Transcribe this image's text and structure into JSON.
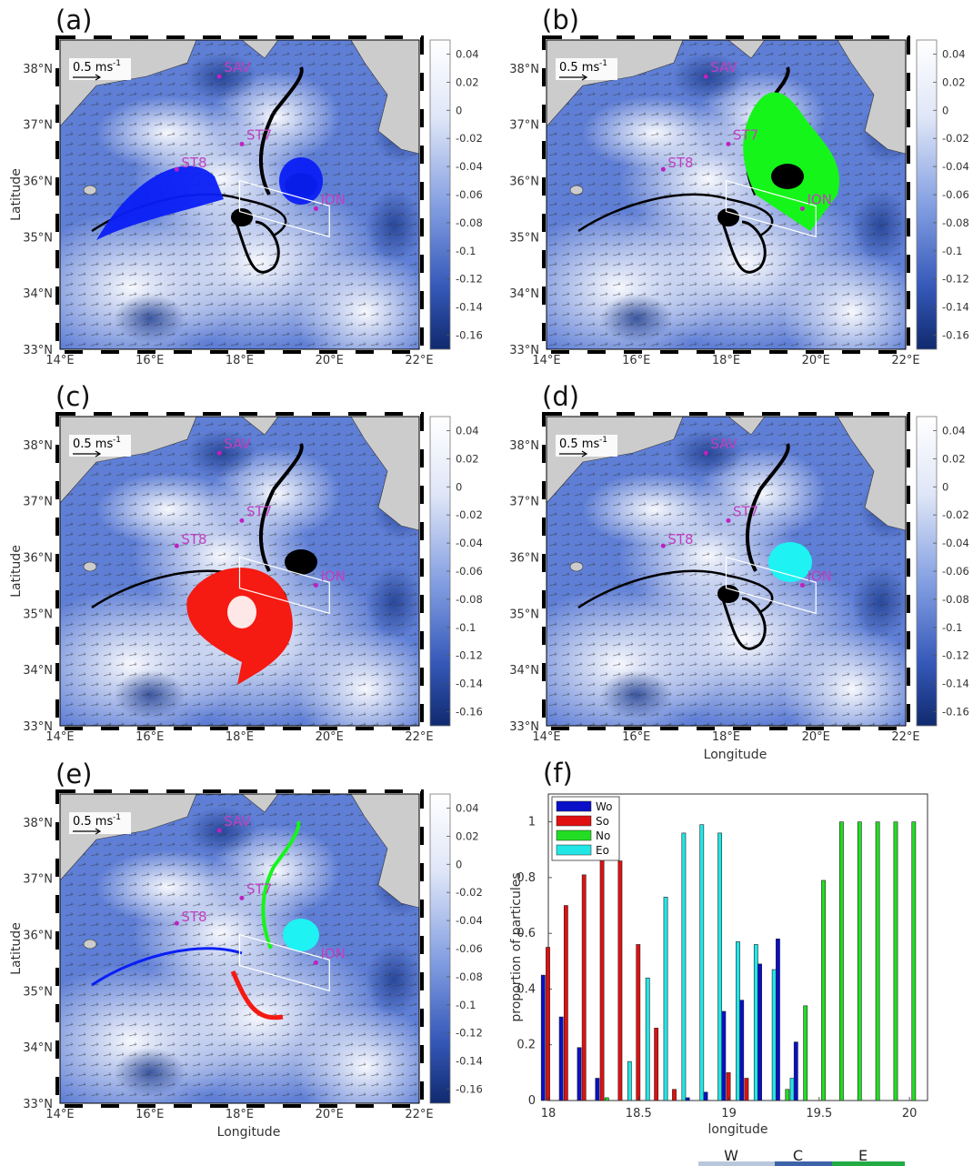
{
  "panels": [
    {
      "label": "(a)",
      "ylabel": "Latitude",
      "xlabel": "",
      "particle_color": "#0a1ff5",
      "scale_label": "0.5 ms",
      "scale_sup": "-1"
    },
    {
      "label": "(b)",
      "ylabel": "",
      "xlabel": "",
      "particle_color": "#16f51a",
      "scale_label": "0.5 ms",
      "scale_sup": "-1"
    },
    {
      "label": "(c)",
      "ylabel": "Latitude",
      "xlabel": "",
      "particle_color": "#f51a12",
      "scale_label": "0.5 ms",
      "scale_sup": "-1"
    },
    {
      "label": "(d)",
      "ylabel": "",
      "xlabel": "Longitude",
      "particle_color": "#1ef2f2",
      "scale_label": "0.5 ms",
      "scale_sup": "-1"
    },
    {
      "label": "(e)",
      "ylabel": "Latitude",
      "xlabel": "Longitude",
      "particle_color": "",
      "scale_label": "0.5 ms",
      "scale_sup": "-1"
    }
  ],
  "map_axes": {
    "lat_ticks": [
      "38°N",
      "37°N",
      "36°N",
      "35°N",
      "34°N",
      "33°N"
    ],
    "lon_ticks": [
      "14°E",
      "16°E",
      "18°E",
      "20°E",
      "22°E"
    ],
    "xlim": [
      14,
      22
    ],
    "ylim": [
      33,
      38.5
    ]
  },
  "stations": [
    {
      "name": "SAV",
      "lon": 17.55,
      "lat": 37.85
    },
    {
      "name": "ST7",
      "lon": 18.05,
      "lat": 36.65
    },
    {
      "name": "ST8",
      "lon": 16.6,
      "lat": 36.2
    },
    {
      "name": "ION",
      "lon": 19.7,
      "lat": 35.5
    }
  ],
  "colorbar": {
    "ticks": [
      "0.04",
      "0.02",
      "0",
      "-0.02",
      "-0.04",
      "-0.06",
      "-0.08",
      "-0.1",
      "-0.12",
      "-0.14",
      "-0.16"
    ],
    "range": [
      -0.17,
      0.05
    ],
    "low_color": "#102a6e",
    "mid_color": "#4a6fcf",
    "high_color": "#ffffff"
  },
  "chart_data": {
    "type": "bar",
    "panel_label": "(f)",
    "xlabel": "longitude",
    "ylabel": "proportion of particules",
    "xlim": [
      18,
      20.1
    ],
    "ylim": [
      0,
      1.1
    ],
    "xticks": [
      "18",
      "18.5",
      "19",
      "19.5",
      "20"
    ],
    "yticks": [
      "0",
      "0.2",
      "0.4",
      "0.6",
      "0.8",
      "1"
    ],
    "categories": [
      18.0,
      18.1,
      18.2,
      18.3,
      18.4,
      18.5,
      18.6,
      18.7,
      18.8,
      18.9,
      19.0,
      19.1,
      19.2,
      19.3,
      19.4,
      19.5,
      19.6,
      19.7,
      19.8,
      19.9,
      20.0
    ],
    "series": [
      {
        "name": "Wo",
        "color": "#0a0fc8",
        "values": [
          0.45,
          0.3,
          0.19,
          0.08,
          0,
          0,
          0,
          0,
          0.01,
          0.03,
          0.32,
          0.36,
          0.49,
          0.58,
          0.21,
          0,
          0,
          0,
          0,
          0,
          0
        ]
      },
      {
        "name": "So",
        "color": "#e01010",
        "values": [
          0.55,
          0.7,
          0.81,
          0.91,
          0.86,
          0.56,
          0.26,
          0.04,
          0,
          0,
          0.1,
          0.08,
          0,
          0,
          0,
          0,
          0,
          0,
          0,
          0,
          0
        ]
      },
      {
        "name": "No",
        "color": "#22dd22",
        "values": [
          0,
          0,
          0,
          0.01,
          0,
          0,
          0,
          0,
          0,
          0,
          0,
          0,
          0,
          0.04,
          0.34,
          0.79,
          1,
          1,
          1,
          1,
          1
        ]
      },
      {
        "name": "Eo",
        "color": "#22e6e6",
        "values": [
          0,
          0,
          0,
          0,
          0.14,
          0.44,
          0.73,
          0.96,
          0.99,
          0.96,
          0.57,
          0.56,
          0.47,
          0.08,
          0,
          0,
          0,
          0,
          0,
          0,
          0
        ]
      }
    ]
  },
  "bottom_strip": {
    "labels": [
      "W",
      "C",
      "E"
    ],
    "colors": [
      "#b8c8dc",
      "#3d63a8",
      "#22aa44"
    ]
  }
}
